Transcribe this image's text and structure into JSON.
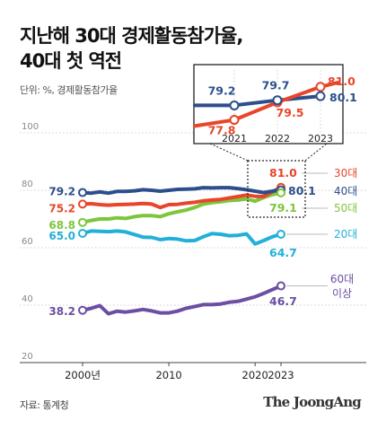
{
  "title_line1": "지난해 30대 경제활동참가율,",
  "title_line2": "40대 첫 역전",
  "unit_label": "단위: %, 경제활동참가율",
  "source_label": "자료: 통계청",
  "brand_label": "The JoongAng",
  "chart_data": {
    "type": "line",
    "title": "지난해 30대 경제활동참가율, 40대 첫 역전",
    "ylabel": "단위: %, 경제활동참가율",
    "ylim": [
      20,
      100
    ],
    "yticks": [
      20,
      40,
      60,
      80,
      100
    ],
    "xlim": [
      2000,
      2023
    ],
    "xticks": [
      {
        "value": 2000,
        "label": "2000년"
      },
      {
        "value": 2010,
        "label": "2010"
      },
      {
        "value": 2020,
        "label": "2020"
      },
      {
        "value": 2023,
        "label": "2023"
      }
    ],
    "grid": true,
    "x": [
      2000,
      2001,
      2002,
      2003,
      2004,
      2005,
      2006,
      2007,
      2008,
      2009,
      2010,
      2011,
      2012,
      2013,
      2014,
      2015,
      2016,
      2017,
      2018,
      2019,
      2020,
      2021,
      2022,
      2023
    ],
    "series": [
      {
        "name": "30대",
        "color": "#e8452a",
        "values": [
          75.2,
          75.3,
          75.0,
          74.8,
          75.0,
          75.1,
          75.2,
          75.4,
          75.2,
          74.0,
          75.0,
          75.1,
          75.5,
          75.8,
          76.3,
          76.6,
          76.8,
          77.3,
          77.8,
          78.3,
          77.9,
          77.8,
          79.5,
          81.0
        ],
        "labels": {
          "start": "75.2",
          "end": "81.0"
        }
      },
      {
        "name": "40대",
        "color": "#2c4f8c",
        "values": [
          79.2,
          79.0,
          79.4,
          79.0,
          79.6,
          79.6,
          79.8,
          80.2,
          80.0,
          79.7,
          80.0,
          80.3,
          80.4,
          80.5,
          80.9,
          80.8,
          80.9,
          80.9,
          80.6,
          80.2,
          79.7,
          79.2,
          79.7,
          80.1
        ],
        "labels": {
          "start": "79.2",
          "end": "80.1"
        }
      },
      {
        "name": "50대",
        "color": "#7dc63b",
        "values": [
          68.8,
          69.5,
          70.0,
          70.0,
          70.4,
          70.2,
          70.8,
          71.2,
          71.2,
          70.8,
          71.8,
          72.5,
          73.1,
          74.0,
          75.2,
          75.7,
          76.0,
          76.4,
          76.6,
          77.0,
          76.2,
          77.5,
          78.5,
          79.1
        ],
        "labels": {
          "start": "68.8",
          "end": "79.1"
        }
      },
      {
        "name": "20대",
        "color": "#22b0d8",
        "values": [
          65.0,
          65.8,
          65.7,
          65.6,
          65.8,
          65.5,
          64.6,
          63.7,
          63.6,
          62.8,
          63.2,
          63.0,
          62.4,
          62.5,
          63.8,
          64.9,
          64.7,
          64.2,
          64.3,
          64.8,
          61.3,
          62.5,
          63.8,
          64.7
        ],
        "labels": {
          "start": "65.0",
          "end": "64.7"
        }
      },
      {
        "name": "60대 이상",
        "name_lines": [
          "60대",
          "이상"
        ],
        "color": "#6a4fa3",
        "values": [
          38.2,
          38.9,
          39.8,
          37.0,
          37.9,
          37.6,
          38.0,
          38.5,
          38.0,
          37.3,
          37.3,
          37.9,
          38.9,
          39.5,
          40.2,
          40.2,
          40.4,
          41.0,
          41.3,
          42.1,
          42.9,
          44.1,
          45.4,
          46.7
        ],
        "labels": {
          "start": "38.2",
          "end": "46.7"
        }
      }
    ],
    "inset": {
      "x": [
        2021,
        2022,
        2023
      ],
      "xtick_labels": [
        "2021",
        "2022",
        "2023"
      ],
      "series": [
        {
          "name": "30대",
          "color": "#e8452a",
          "values": [
            77.8,
            79.5,
            81.0
          ],
          "labels": [
            "77.8",
            "79.5",
            "81.0"
          ]
        },
        {
          "name": "40대",
          "color": "#2c4f8c",
          "values": [
            79.2,
            79.7,
            80.1
          ],
          "labels": [
            "79.2",
            "79.7",
            "80.1"
          ]
        }
      ]
    }
  }
}
